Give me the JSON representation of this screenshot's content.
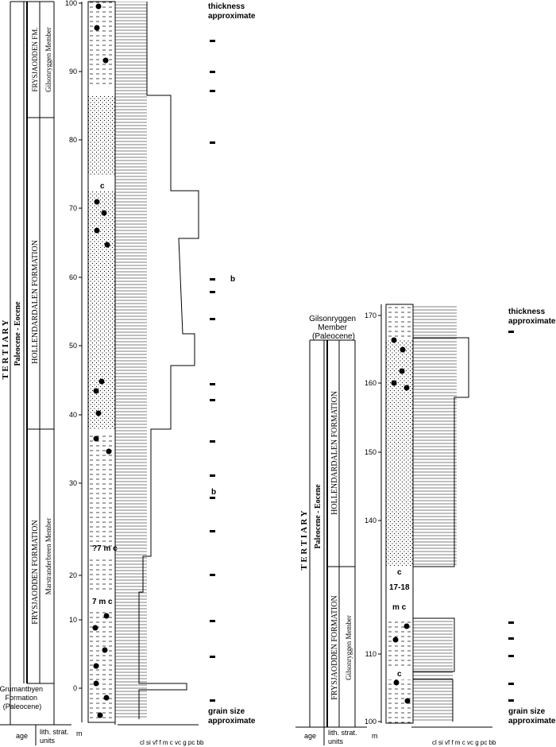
{
  "left": {
    "strat_texts": {
      "tertiary": "T E R T I A R Y",
      "period": "Paleocene - Eocene",
      "hollendardalen": "HOLLENDARDALEN FORMATION",
      "frysjaodden": "FRYSJAODDEN FORMATION",
      "marstranderbreen": "Marstranderbreen Member",
      "frysjaodden_fm": "FRYSJAODDEN FM.",
      "gilsonryggen": "Gilsonryggen Member",
      "grumant": "Grumantbyen Formation (Paleocene)"
    },
    "axis_label": "m",
    "depth_ticks": [
      "100",
      "90",
      "80",
      "70",
      "60",
      "50",
      "40",
      "30",
      "20",
      "10",
      "0"
    ],
    "gap_labels": [
      "?7 m c",
      "7 m c"
    ],
    "c_label": "c",
    "b_labels": [
      "b",
      "b"
    ],
    "thickness_note": [
      "thickness",
      "approximate"
    ],
    "grain_note": [
      "grain size",
      "approximate"
    ],
    "footer": {
      "age": "age",
      "lith": [
        "lith. strat.",
        "units"
      ],
      "m": "m",
      "grain": "cl si vf f m c vc g pc bb"
    }
  },
  "right": {
    "strat_texts": {
      "tertiary": "T E R T I A R Y",
      "period": "Paleocene - Eocene",
      "hollendardalen": "HOLLENDARDALEN FORMATION",
      "frysjaodden": "FRYSJAODDEN FORMATION",
      "gilsonryggen": "Gilsonryggen Member",
      "gilson_header": [
        "Gilsonryggen",
        "Member",
        "(Paleocene)"
      ]
    },
    "axis_label": "m",
    "depth_ticks": [
      "170",
      "160",
      "150",
      "140",
      "110",
      "100"
    ],
    "gap_label": "17-18",
    "c_labels": [
      "c",
      "c",
      "m c"
    ],
    "thickness_note": [
      "thickness",
      "approximate"
    ],
    "grain_note": [
      "grain size",
      "approximate"
    ],
    "footer": {
      "age": "age",
      "lith": [
        "lith. strat.",
        "units"
      ],
      "m": "m",
      "grain": "cl si vf f m c vc g pc bb"
    }
  }
}
